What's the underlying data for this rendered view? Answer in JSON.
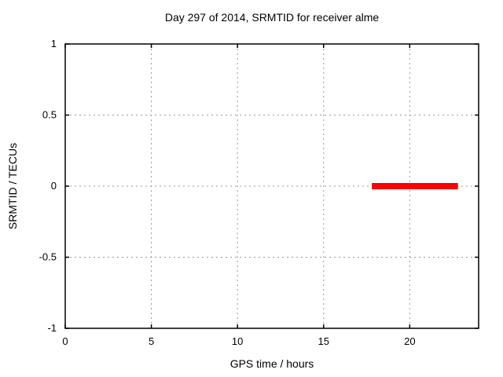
{
  "window": {
    "background_color": "#ffffff"
  },
  "chart_data": {
    "type": "line",
    "title": "Day 297 of 2014, SRMTID for receiver alme",
    "xlabel": "GPS time / hours",
    "ylabel": "SRMTID / TECUs",
    "xlim": [
      0,
      24
    ],
    "ylim": [
      -1,
      1
    ],
    "xticks": [
      0,
      5,
      10,
      15,
      20
    ],
    "yticks": [
      -1,
      -0.5,
      0,
      0.5,
      1
    ],
    "grid": true,
    "grid_style": "dashed",
    "legend": "none",
    "series": [
      {
        "name": "SRMTID",
        "color": "#ff0000",
        "line_width": 8,
        "points": [
          [
            17.8,
            0
          ],
          [
            22.8,
            0
          ]
        ]
      }
    ],
    "colors": {
      "axis": "#000000",
      "grid": "#999999",
      "text": "#000000",
      "series": "#ff0000",
      "background": "#ffffff"
    }
  }
}
